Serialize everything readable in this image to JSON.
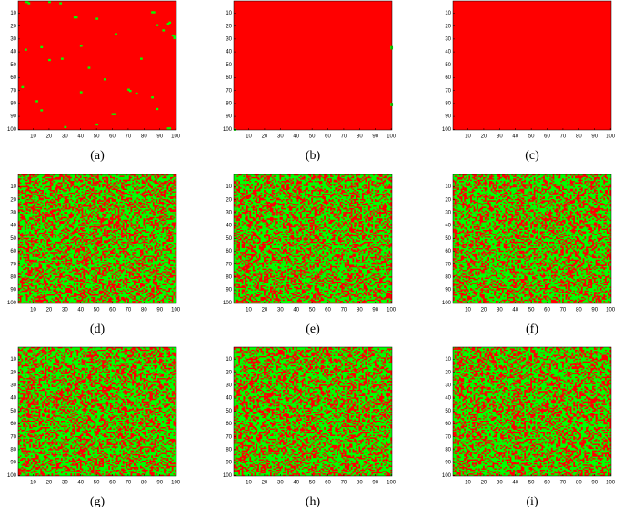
{
  "chart_data": [
    {
      "type": "heatmap",
      "caption": "(a)",
      "xlim": [
        0.5,
        100.5
      ],
      "ylim": [
        0.5,
        100.5
      ],
      "y_inverted": true,
      "mixed": false,
      "xticks": [
        10,
        20,
        30,
        40,
        50,
        60,
        70,
        80,
        90,
        100
      ],
      "yticks": [
        10,
        20,
        30,
        40,
        50,
        60,
        70,
        80,
        90,
        100
      ],
      "background_color": "#ff0000",
      "cell_color": "#00ff00",
      "green_cells": [
        [
          5,
          1
        ],
        [
          6,
          1
        ],
        [
          7,
          2
        ],
        [
          20,
          1
        ],
        [
          27,
          2
        ],
        [
          36,
          13
        ],
        [
          37,
          13
        ],
        [
          50,
          14
        ],
        [
          85,
          9
        ],
        [
          86,
          9
        ],
        [
          95,
          18
        ],
        [
          96,
          17
        ],
        [
          98,
          27
        ],
        [
          99,
          28
        ],
        [
          99,
          29
        ],
        [
          5,
          38
        ],
        [
          15,
          36
        ],
        [
          20,
          46
        ],
        [
          28,
          45
        ],
        [
          40,
          35
        ],
        [
          62,
          26
        ],
        [
          88,
          19
        ],
        [
          92,
          23
        ],
        [
          55,
          61
        ],
        [
          70,
          69
        ],
        [
          71,
          70
        ],
        [
          75,
          72
        ],
        [
          85,
          75
        ],
        [
          40,
          71
        ],
        [
          12,
          78
        ],
        [
          60,
          88
        ],
        [
          61,
          88
        ],
        [
          30,
          98
        ],
        [
          50,
          96
        ],
        [
          95,
          99
        ],
        [
          96,
          99
        ],
        [
          88,
          84
        ],
        [
          15,
          85
        ],
        [
          3,
          67
        ],
        [
          45,
          52
        ],
        [
          78,
          45
        ]
      ]
    },
    {
      "type": "heatmap",
      "caption": "(b)",
      "xlim": [
        0.5,
        100.5
      ],
      "ylim": [
        0.5,
        100.5
      ],
      "y_inverted": true,
      "mixed": false,
      "xticks": [
        10,
        20,
        30,
        40,
        50,
        60,
        70,
        80,
        90,
        100
      ],
      "yticks": [
        10,
        20,
        30,
        40,
        50,
        60,
        70,
        80,
        90,
        100
      ],
      "background_color": "#ff0000",
      "cell_color": "#00ff00",
      "green_cells": [
        [
          100,
          36
        ],
        [
          100,
          37
        ],
        [
          100,
          80
        ],
        [
          100,
          81
        ],
        [
          1,
          100
        ]
      ]
    },
    {
      "type": "heatmap",
      "caption": "(c)",
      "xlim": [
        0.5,
        100.5
      ],
      "ylim": [
        0.5,
        100.5
      ],
      "y_inverted": true,
      "mixed": false,
      "xticks": [
        10,
        20,
        30,
        40,
        50,
        60,
        70,
        80,
        90,
        100
      ],
      "yticks": [
        10,
        20,
        30,
        40,
        50,
        60,
        70,
        80,
        90,
        100
      ],
      "background_color": "#ff0000",
      "cell_color": "#00ff00",
      "green_cells": []
    },
    {
      "type": "heatmap",
      "caption": "(d)",
      "xlim": [
        0.5,
        100.5
      ],
      "ylim": [
        0.5,
        100.5
      ],
      "y_inverted": true,
      "mixed": true,
      "xticks": [
        10,
        20,
        30,
        40,
        50,
        60,
        70,
        80,
        90,
        100
      ],
      "yticks": [
        10,
        20,
        30,
        40,
        50,
        60,
        70,
        80,
        90,
        100
      ],
      "background_color": "#ff0000",
      "cell_color": "#00ff00",
      "green_cells": []
    },
    {
      "type": "heatmap",
      "caption": "(e)",
      "xlim": [
        0.5,
        100.5
      ],
      "ylim": [
        0.5,
        100.5
      ],
      "y_inverted": true,
      "mixed": true,
      "xticks": [
        10,
        20,
        30,
        40,
        50,
        60,
        70,
        80,
        90,
        100
      ],
      "yticks": [
        10,
        20,
        30,
        40,
        50,
        60,
        70,
        80,
        90,
        100
      ],
      "background_color": "#ff0000",
      "cell_color": "#00ff00",
      "green_cells": []
    },
    {
      "type": "heatmap",
      "caption": "(f)",
      "xlim": [
        0.5,
        100.5
      ],
      "ylim": [
        0.5,
        100.5
      ],
      "y_inverted": true,
      "mixed": true,
      "xticks": [
        10,
        20,
        30,
        40,
        50,
        60,
        70,
        80,
        90,
        100
      ],
      "yticks": [
        10,
        20,
        30,
        40,
        50,
        60,
        70,
        80,
        90,
        100
      ],
      "background_color": "#ff0000",
      "cell_color": "#00ff00",
      "green_cells": []
    },
    {
      "type": "heatmap",
      "caption": "(g)",
      "xlim": [
        0.5,
        100.5
      ],
      "ylim": [
        0.5,
        100.5
      ],
      "y_inverted": true,
      "mixed": true,
      "xticks": [
        10,
        20,
        30,
        40,
        50,
        60,
        70,
        80,
        90,
        100
      ],
      "yticks": [
        10,
        20,
        30,
        40,
        50,
        60,
        70,
        80,
        90,
        100
      ],
      "background_color": "#ff0000",
      "cell_color": "#00ff00",
      "green_cells": []
    },
    {
      "type": "heatmap",
      "caption": "(h)",
      "xlim": [
        0.5,
        100.5
      ],
      "ylim": [
        0.5,
        100.5
      ],
      "y_inverted": true,
      "mixed": true,
      "xticks": [
        10,
        20,
        30,
        40,
        50,
        60,
        70,
        80,
        90,
        100
      ],
      "yticks": [
        10,
        20,
        30,
        40,
        50,
        60,
        70,
        80,
        90,
        100
      ],
      "background_color": "#ff0000",
      "cell_color": "#00ff00",
      "green_cells": []
    },
    {
      "type": "heatmap",
      "caption": "(i)",
      "xlim": [
        0.5,
        100.5
      ],
      "ylim": [
        0.5,
        100.5
      ],
      "y_inverted": true,
      "mixed": true,
      "xticks": [
        10,
        20,
        30,
        40,
        50,
        60,
        70,
        80,
        90,
        100
      ],
      "yticks": [
        10,
        20,
        30,
        40,
        50,
        60,
        70,
        80,
        90,
        100
      ],
      "background_color": "#ff0000",
      "cell_color": "#00ff00",
      "green_cells": []
    }
  ]
}
